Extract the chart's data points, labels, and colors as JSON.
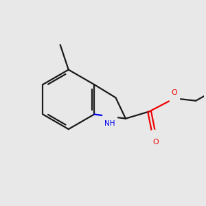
{
  "background_color": "#e8e8e8",
  "bond_color": "#1a1a1a",
  "nitrogen_color": "#0000ee",
  "oxygen_color": "#ee0000",
  "bond_width": 1.6,
  "figsize": [
    3.0,
    3.0
  ],
  "dpi": 100,
  "xlim": [
    0.0,
    8.5
  ],
  "ylim": [
    1.5,
    9.0
  ]
}
